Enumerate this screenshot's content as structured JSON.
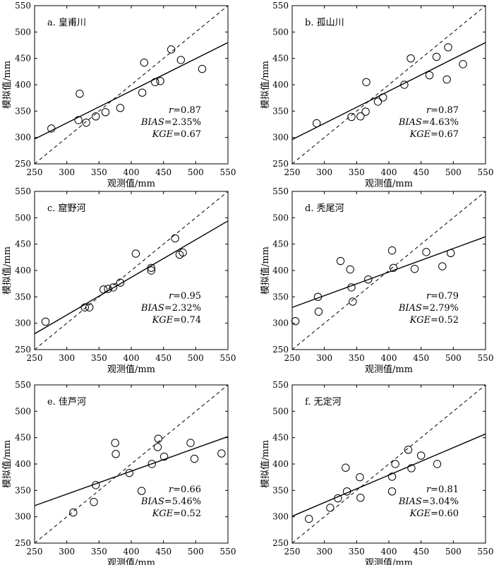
{
  "chart_data": [
    {
      "type": "scatter",
      "panel_label": "a. 皇甫川",
      "xlabel": "观测值/mm",
      "ylabel": "模拟值/mm",
      "xlim": [
        250,
        550
      ],
      "ylim": [
        250,
        550
      ],
      "ticks": [
        250,
        300,
        350,
        400,
        450,
        500,
        550
      ],
      "points": [
        [
          276,
          317
        ],
        [
          318,
          333
        ],
        [
          320,
          383
        ],
        [
          330,
          328
        ],
        [
          345,
          340
        ],
        [
          360,
          348
        ],
        [
          383,
          356
        ],
        [
          417,
          385
        ],
        [
          420,
          442
        ],
        [
          437,
          405
        ],
        [
          445,
          407
        ],
        [
          462,
          467
        ],
        [
          477,
          447
        ],
        [
          510,
          430
        ]
      ],
      "fit_line": [
        [
          250,
          297
        ],
        [
          550,
          480
        ]
      ],
      "reference_line": "1:1",
      "stats": {
        "r_prefix": "r",
        "r_value": "=0.87",
        "bias_prefix": "BIAS",
        "bias_value": "=2.35%",
        "kge_prefix": "KGE",
        "kge_value": "=0.67"
      }
    },
    {
      "type": "scatter",
      "panel_label": "b. 孤山川",
      "xlabel": "观测值/mm",
      "ylabel": "模拟值/mm",
      "xlim": [
        250,
        550
      ],
      "ylim": [
        250,
        550
      ],
      "ticks": [
        250,
        300,
        350,
        400,
        450,
        500,
        550
      ],
      "points": [
        [
          288,
          327
        ],
        [
          342,
          339
        ],
        [
          356,
          340
        ],
        [
          364,
          349
        ],
        [
          365,
          405
        ],
        [
          383,
          368
        ],
        [
          391,
          376
        ],
        [
          424,
          400
        ],
        [
          434,
          450
        ],
        [
          463,
          418
        ],
        [
          474,
          453
        ],
        [
          490,
          410
        ],
        [
          492,
          471
        ],
        [
          515,
          439
        ]
      ],
      "fit_line": [
        [
          250,
          296
        ],
        [
          550,
          480
        ]
      ],
      "reference_line": "1:1",
      "stats": {
        "r_prefix": "r",
        "r_value": "=0.87",
        "bias_prefix": "BIAS",
        "bias_value": "=4.63%",
        "kge_prefix": "KGE",
        "kge_value": "=0.67"
      }
    },
    {
      "type": "scatter",
      "panel_label": "c. 窟野河",
      "xlabel": "观测值/mm",
      "ylabel": "模拟值/mm",
      "xlim": [
        250,
        550
      ],
      "ylim": [
        250,
        550
      ],
      "ticks": [
        250,
        300,
        350,
        400,
        450,
        500,
        550
      ],
      "points": [
        [
          267,
          303
        ],
        [
          328,
          330
        ],
        [
          335,
          330
        ],
        [
          357,
          364
        ],
        [
          364,
          365
        ],
        [
          372,
          368
        ],
        [
          383,
          377
        ],
        [
          407,
          432
        ],
        [
          431,
          400
        ],
        [
          431,
          405
        ],
        [
          468,
          461
        ],
        [
          475,
          430
        ],
        [
          480,
          434
        ]
      ],
      "fit_line": [
        [
          250,
          280
        ],
        [
          550,
          494
        ]
      ],
      "reference_line": "1:1",
      "stats": {
        "r_prefix": "r",
        "r_value": "=0.95",
        "bias_prefix": "BIAS",
        "bias_value": "=2.32%",
        "kge_prefix": "KGE",
        "kge_value": "=0.74"
      }
    },
    {
      "type": "scatter",
      "panel_label": "d. 秃尾河",
      "xlabel": "观测值/mm",
      "ylabel": "模拟值/mm",
      "xlim": [
        250,
        550
      ],
      "ylim": [
        250,
        550
      ],
      "ticks": [
        250,
        300,
        350,
        400,
        450,
        500,
        550
      ],
      "points": [
        [
          255,
          304
        ],
        [
          290,
          350
        ],
        [
          291,
          322
        ],
        [
          325,
          418
        ],
        [
          340,
          402
        ],
        [
          342,
          368
        ],
        [
          344,
          341
        ],
        [
          368,
          383
        ],
        [
          405,
          438
        ],
        [
          407,
          405
        ],
        [
          440,
          403
        ],
        [
          458,
          435
        ],
        [
          483,
          408
        ],
        [
          496,
          433
        ]
      ],
      "fit_line": [
        [
          250,
          330
        ],
        [
          550,
          464
        ]
      ],
      "reference_line": "1:1",
      "stats": {
        "r_prefix": "r",
        "r_value": "=0.79",
        "bias_prefix": "BIAS",
        "bias_value": "=2.79%",
        "kge_prefix": "KGE",
        "kge_value": "=0.52"
      }
    },
    {
      "type": "scatter",
      "panel_label": "e. 佳芦河",
      "xlabel": "观测值/mm",
      "ylabel": "模拟值/mm",
      "xlim": [
        250,
        550
      ],
      "ylim": [
        250,
        550
      ],
      "ticks": [
        250,
        300,
        350,
        400,
        450,
        500,
        550
      ],
      "points": [
        [
          310,
          308
        ],
        [
          342,
          328
        ],
        [
          345,
          360
        ],
        [
          375,
          440
        ],
        [
          376,
          419
        ],
        [
          397,
          383
        ],
        [
          416,
          349
        ],
        [
          432,
          400
        ],
        [
          441,
          432
        ],
        [
          442,
          448
        ],
        [
          451,
          414
        ],
        [
          492,
          440
        ],
        [
          498,
          410
        ],
        [
          540,
          420
        ]
      ],
      "fit_line": [
        [
          250,
          321
        ],
        [
          550,
          452
        ]
      ],
      "reference_line": "1:1",
      "stats": {
        "r_prefix": "r",
        "r_value": "=0.66",
        "bias_prefix": "BIAS",
        "bias_value": "=5.46%",
        "kge_prefix": "KGE",
        "kge_value": "=0.52"
      }
    },
    {
      "type": "scatter",
      "panel_label": "f. 无定河",
      "xlabel": "观测值/mm",
      "ylabel": "模拟值/mm",
      "xlim": [
        250,
        550
      ],
      "ylim": [
        250,
        550
      ],
      "ticks": [
        250,
        300,
        350,
        400,
        450,
        500,
        550
      ],
      "points": [
        [
          276,
          296
        ],
        [
          309,
          317
        ],
        [
          321,
          335
        ],
        [
          333,
          393
        ],
        [
          335,
          348
        ],
        [
          355,
          375
        ],
        [
          356,
          336
        ],
        [
          405,
          348
        ],
        [
          405,
          376
        ],
        [
          410,
          400
        ],
        [
          430,
          427
        ],
        [
          435,
          392
        ],
        [
          450,
          416
        ],
        [
          475,
          400
        ]
      ],
      "fit_line": [
        [
          250,
          301
        ],
        [
          550,
          457
        ]
      ],
      "reference_line": "1:1",
      "stats": {
        "r_prefix": "r",
        "r_value": "=0.81",
        "bias_prefix": "BIAS",
        "bias_value": "=3.04%",
        "kge_prefix": "KGE",
        "kge_value": "=0.60"
      }
    }
  ]
}
